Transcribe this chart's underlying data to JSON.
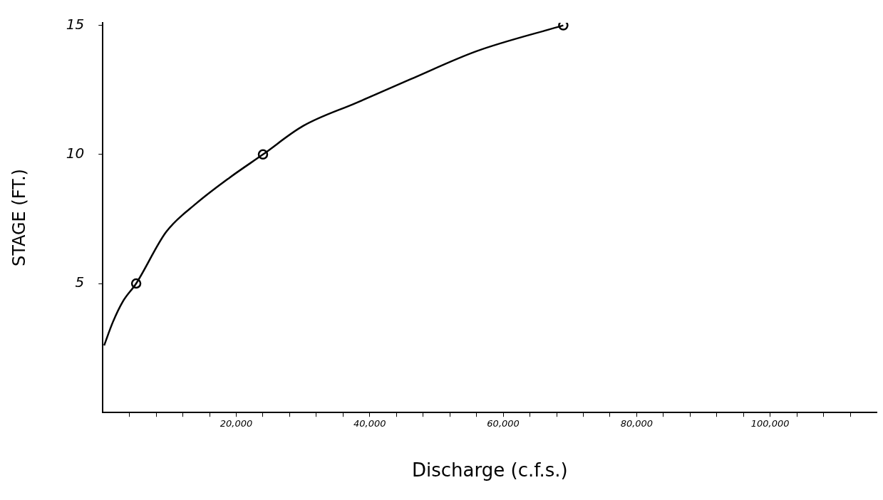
{
  "chart_data": {
    "type": "line",
    "xlabel": "Discharge (c.f.s.)",
    "ylabel": "STAGE (FT.)",
    "series": [
      {
        "type": "line",
        "color": "#000000",
        "marker": "none",
        "x": [
          200,
          1500,
          3000,
          5000,
          9500,
          14000,
          19000,
          24000,
          30000,
          38000,
          46000,
          56000,
          69000
        ],
        "values": [
          2.6,
          3.5,
          4.3,
          5,
          7,
          8.1,
          9.1,
          10,
          11.1,
          12,
          12.9,
          14,
          15
        ]
      },
      {
        "type": "scatter",
        "color": "#000000",
        "marker": "circle",
        "x": [
          5000,
          24000,
          69000
        ],
        "values": [
          5,
          10,
          15
        ]
      }
    ],
    "xlim": [
      0,
      116000
    ],
    "xticks": [
      {
        "value": 4000,
        "label": null
      },
      {
        "value": 8000,
        "label": null
      },
      {
        "value": 12000,
        "label": null
      },
      {
        "value": 16000,
        "label": null
      },
      {
        "value": 20000,
        "label": "20,000"
      },
      {
        "value": 24000,
        "label": null
      },
      {
        "value": 28000,
        "label": null
      },
      {
        "value": 32000,
        "label": null
      },
      {
        "value": 36000,
        "label": null
      },
      {
        "value": 40000,
        "label": "40,000"
      },
      {
        "value": 44000,
        "label": null
      },
      {
        "value": 48000,
        "label": null
      },
      {
        "value": 52000,
        "label": null
      },
      {
        "value": 56000,
        "label": null
      },
      {
        "value": 60000,
        "label": "60,000"
      },
      {
        "value": 64000,
        "label": null
      },
      {
        "value": 68000,
        "label": null
      },
      {
        "value": 72000,
        "label": null
      },
      {
        "value": 76000,
        "label": null
      },
      {
        "value": 80000,
        "label": "80,000"
      },
      {
        "value": 84000,
        "label": null
      },
      {
        "value": 88000,
        "label": null
      },
      {
        "value": 92000,
        "label": null
      },
      {
        "value": 96000,
        "label": null
      },
      {
        "value": 100000,
        "label": "100,000"
      },
      {
        "value": 104000,
        "label": null
      },
      {
        "value": 108000,
        "label": null
      },
      {
        "value": 112000,
        "label": null
      }
    ],
    "ylim": [
      0,
      15.1
    ],
    "yticks": [
      5,
      10,
      15
    ],
    "grid": false,
    "legend": false
  }
}
